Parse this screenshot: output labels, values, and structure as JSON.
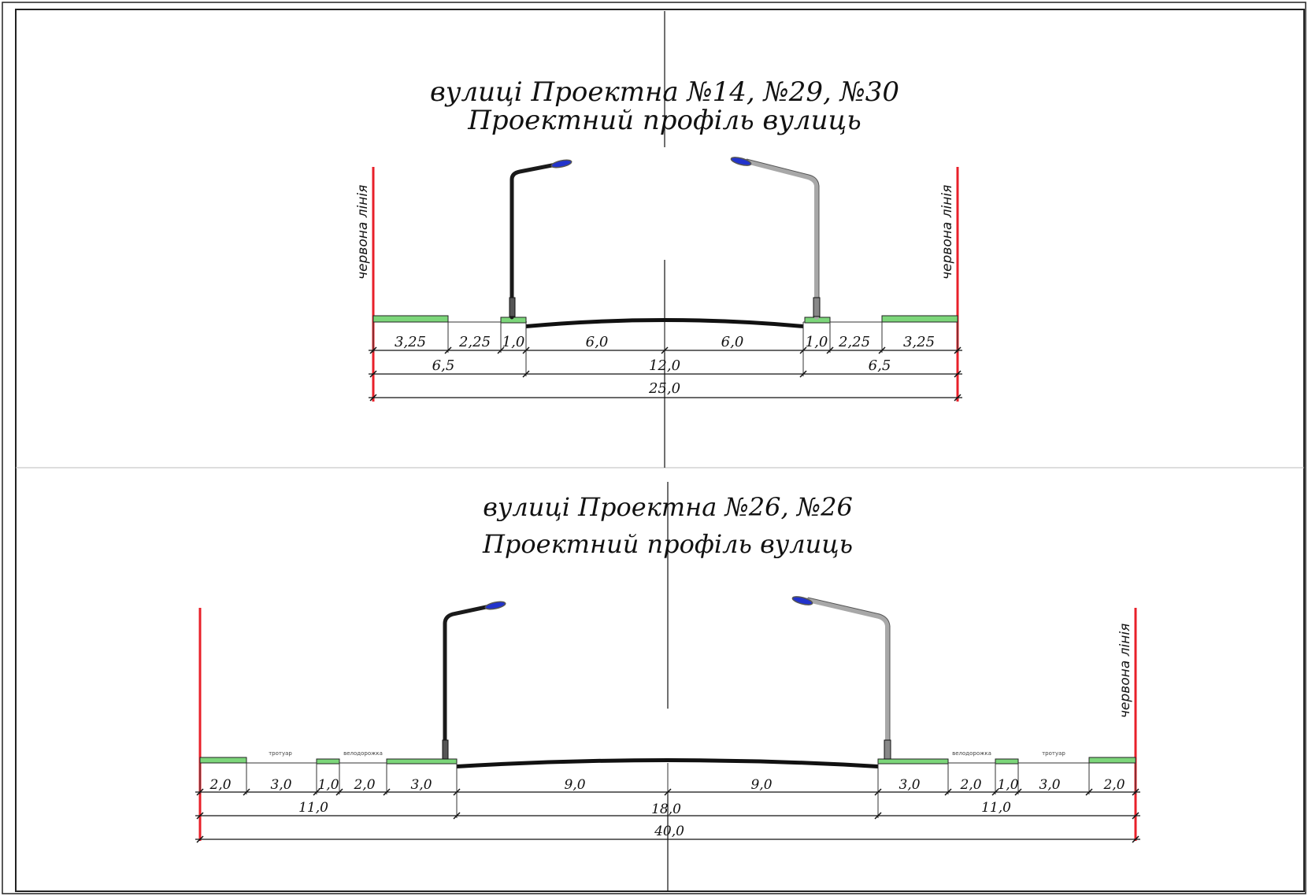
{
  "colors": {
    "red_line": "#e8202a",
    "green_strip": "#7cd67a",
    "road": "#111111",
    "pole_dark": "#1a1a1a",
    "pole_grey": "#a8a8a8",
    "lamp_blue": "#2233cc"
  },
  "red_line_label": "червона лінія",
  "profile1": {
    "title_line1": "вулиці Проектна №14, №29, №30",
    "title_line2": "Проектний профіль вулиць",
    "row1": [
      "3,25",
      "2,25",
      "1,0",
      "6,0",
      "6,0",
      "1,0",
      "2,25",
      "3,25"
    ],
    "row2": [
      "6,5",
      "12,0",
      "6,5"
    ],
    "total": "25,0"
  },
  "profile2": {
    "title_line1": "вулиці Проектна №26, №26",
    "title_line2": "Проектний профіль вулиць",
    "label_sidewalk": "тротуар",
    "label_bikeway": "велодорожка",
    "row1": [
      "2,0",
      "3,0",
      "1,0",
      "2,0",
      "3,0",
      "9,0",
      "9,0",
      "3,0",
      "2,0",
      "1,0",
      "3,0",
      "2,0"
    ],
    "row2": [
      "11,0",
      "18,0",
      "11,0"
    ],
    "total": "40,0"
  }
}
